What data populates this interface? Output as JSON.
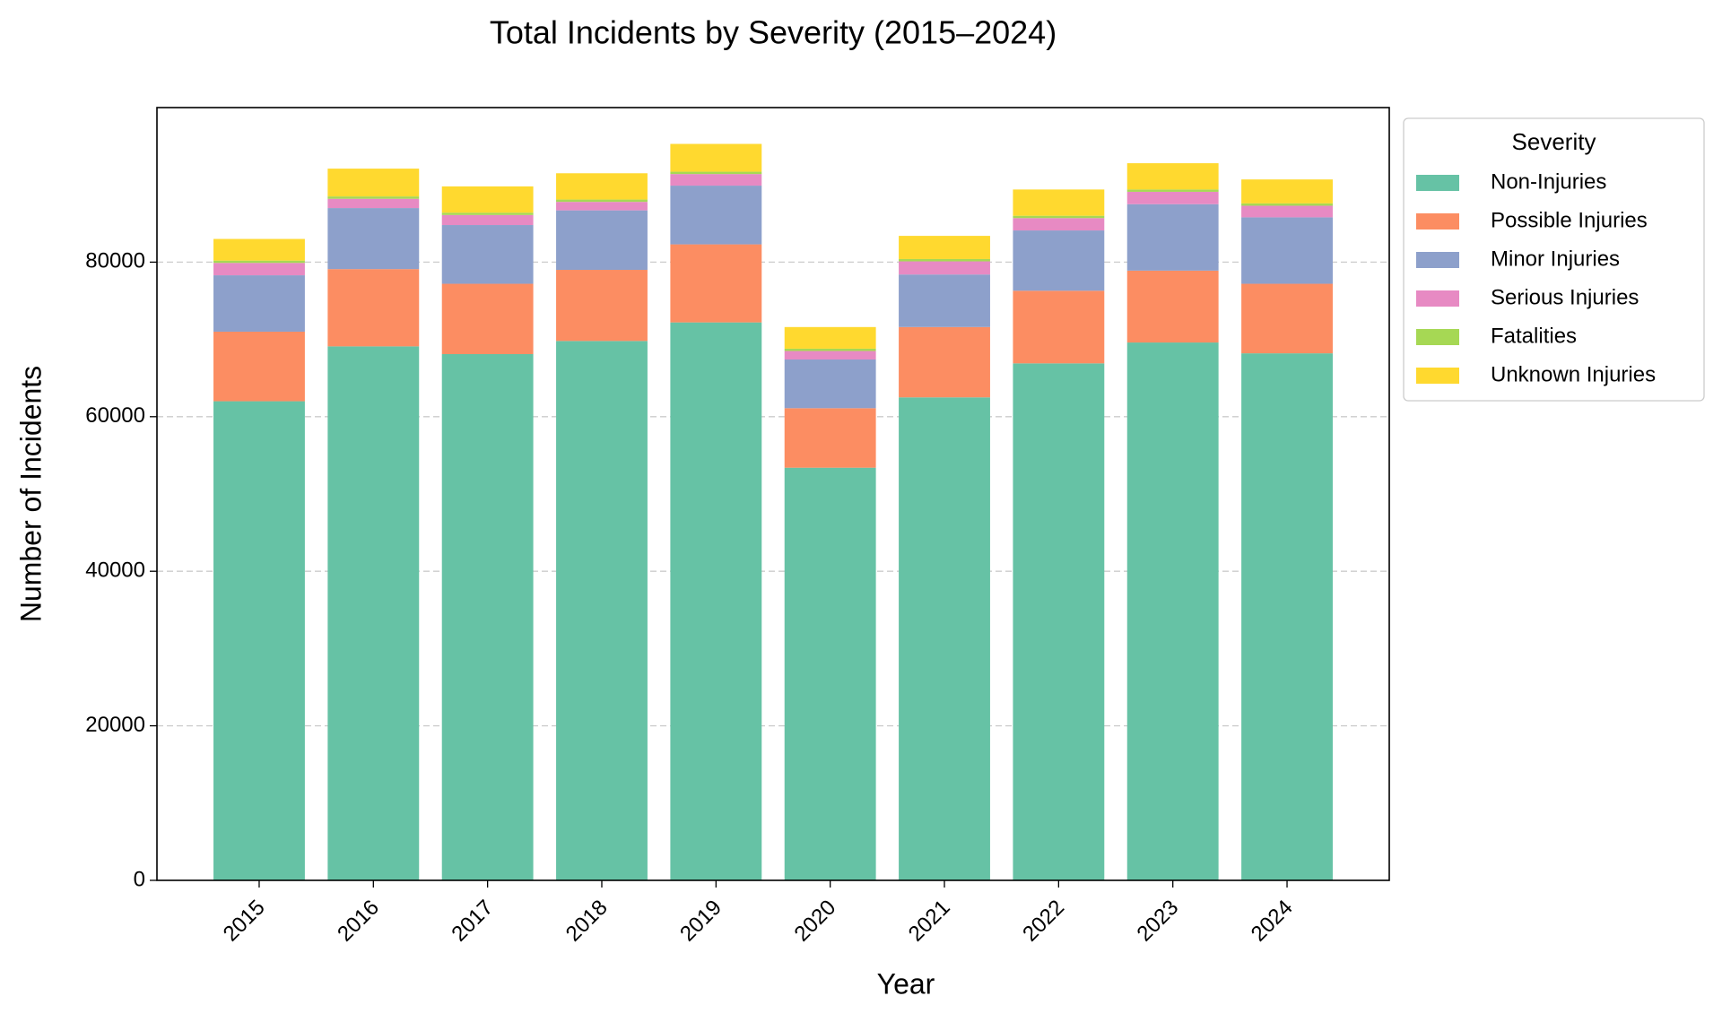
{
  "chart_data": {
    "type": "stacked-bar",
    "title": "Total Incidents by Severity (2015–2024)",
    "x_label": "Year",
    "y_label": "Number of Incidents",
    "legend_title": "Severity",
    "categories": [
      "2015",
      "2016",
      "2017",
      "2018",
      "2019",
      "2020",
      "2021",
      "2022",
      "2023",
      "2024"
    ],
    "series": [
      {
        "name": "Non-Injuries",
        "color": "#66c2a5",
        "values": [
          62000,
          69100,
          68100,
          69800,
          72200,
          53400,
          62500,
          66900,
          69600,
          68200
        ]
      },
      {
        "name": "Possible Injuries",
        "color": "#fc8d62",
        "values": [
          9000,
          10000,
          9100,
          9200,
          10100,
          7700,
          9100,
          9400,
          9300,
          9000
        ]
      },
      {
        "name": "Minor Injuries",
        "color": "#8da0cb",
        "values": [
          7300,
          7900,
          7600,
          7700,
          7600,
          6300,
          6800,
          7800,
          8600,
          8600
        ]
      },
      {
        "name": "Serious Injuries",
        "color": "#e78ac3",
        "values": [
          1600,
          1200,
          1300,
          1100,
          1500,
          1100,
          1700,
          1600,
          1600,
          1500
        ]
      },
      {
        "name": "Fatalities",
        "color": "#a6d854",
        "values": [
          300,
          300,
          300,
          300,
          300,
          300,
          300,
          300,
          300,
          300
        ]
      },
      {
        "name": "Unknown Injuries",
        "color": "#ffd92f",
        "values": [
          2800,
          3600,
          3400,
          3400,
          3600,
          2800,
          3000,
          3400,
          3400,
          3100
        ]
      }
    ],
    "ylim": [
      0,
      100000
    ],
    "yticks": [
      0,
      20000,
      40000,
      60000,
      80000
    ],
    "grid": true
  }
}
